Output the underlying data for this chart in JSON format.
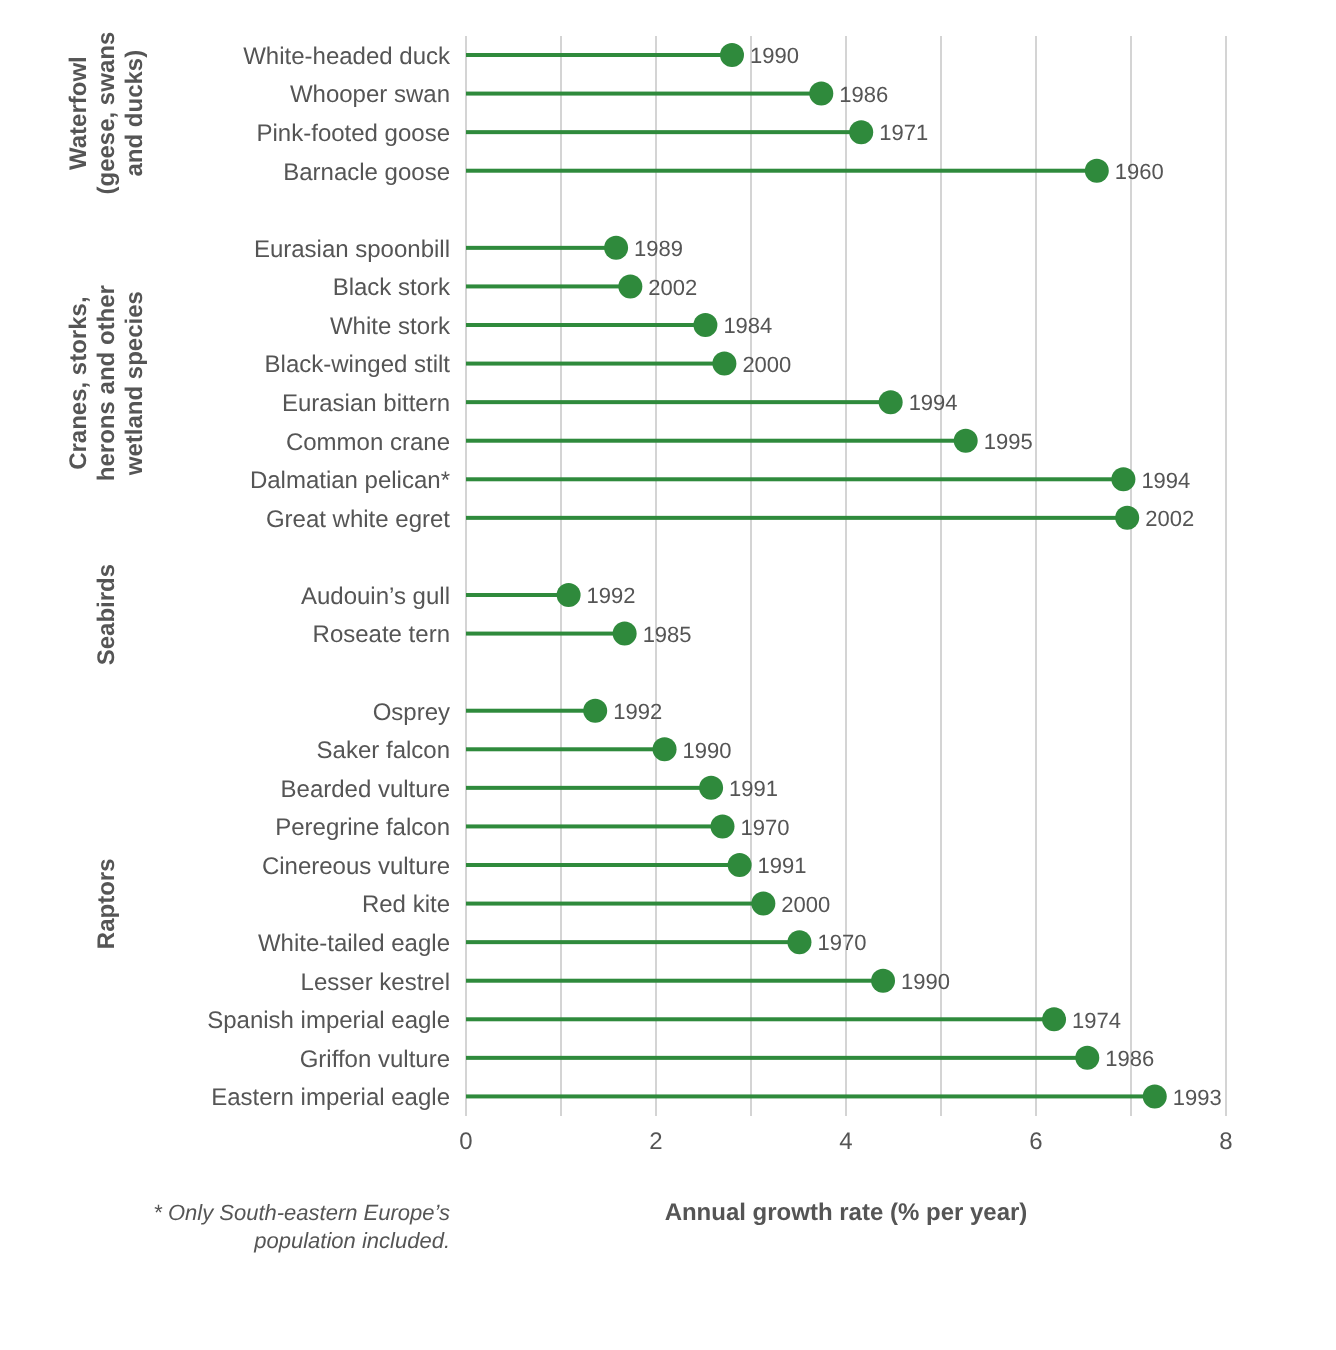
{
  "chart_data": {
    "type": "lollipop",
    "orientation": "horizontal",
    "xlabel": "Annual growth rate (% per year)",
    "categories": [
      "White-headed duck",
      "Whooper swan",
      "Pink-footed goose",
      "Barnacle goose",
      null,
      "Eurasian spoonbill",
      "Black stork",
      "White stork",
      "Black-winged stilt",
      "Eurasian bittern",
      "Common crane",
      "Dalmatian pelican*",
      "Great white egret",
      null,
      "Audouin’s gull",
      "Roseate tern",
      null,
      "Osprey",
      "Saker falcon",
      "Bearded vulture",
      "Peregrine falcon",
      "Cinereous vulture",
      "Red kite",
      "White-tailed eagle",
      "Lesser kestrel",
      "Spanish imperial eagle",
      "Griffon vulture",
      "Eastern imperial eagle"
    ],
    "values": [
      2.8,
      3.74,
      4.16,
      6.64,
      null,
      1.58,
      1.73,
      2.52,
      2.72,
      4.47,
      5.26,
      6.92,
      6.96,
      null,
      1.08,
      1.67,
      null,
      1.36,
      2.09,
      2.58,
      2.7,
      2.88,
      3.13,
      3.51,
      4.39,
      6.19,
      6.54,
      7.25
    ],
    "color": "#2f8a3c",
    "marker": "circle",
    "grid": "x",
    "xlim": [
      0,
      8
    ],
    "xticks": [
      0,
      {
        "value": 1,
        "label": null
      },
      2,
      {
        "value": 3,
        "label": null
      },
      4,
      {
        "value": 5,
        "label": null
      },
      6,
      {
        "value": 7,
        "label": null
      },
      8
    ],
    "annotations": [
      "Waterfowl (geese, swans and ducks)",
      "Cranes, storks, herons and other wetland species",
      "Seabirds",
      "Raptors",
      "* Only South-eastern Europe’s population included.",
      {
        "text": "1990",
        "x": 2.8,
        "y": "White-headed duck"
      },
      {
        "text": "1986",
        "x": 3.74,
        "y": "Whooper swan"
      },
      {
        "text": "1971",
        "x": 4.16,
        "y": "Pink-footed goose"
      },
      {
        "text": "1960",
        "x": 6.64,
        "y": "Barnacle goose"
      },
      {
        "text": "1989",
        "x": 1.58,
        "y": "Eurasian spoonbill"
      },
      {
        "text": "2002",
        "x": 1.73,
        "y": "Black stork"
      },
      {
        "text": "1984",
        "x": 2.52,
        "y": "White stork"
      },
      {
        "text": "2000",
        "x": 2.72,
        "y": "Black-winged stilt"
      },
      {
        "text": "1994",
        "x": 4.47,
        "y": "Eurasian bittern"
      },
      {
        "text": "1995",
        "x": 5.26,
        "y": "Common crane"
      },
      {
        "text": "1994",
        "x": 6.92,
        "y": "Dalmatian pelican*"
      },
      {
        "text": "2002",
        "x": 6.96,
        "y": "Great white egret"
      },
      {
        "text": "1992",
        "x": 1.08,
        "y": "Audouin’s gull"
      },
      {
        "text": "1985",
        "x": 1.67,
        "y": "Roseate tern"
      },
      {
        "text": "1992",
        "x": 1.36,
        "y": "Osprey"
      },
      {
        "text": "1990",
        "x": 2.09,
        "y": "Saker falcon"
      },
      {
        "text": "1991",
        "x": 2.58,
        "y": "Bearded vulture"
      },
      {
        "text": "1970",
        "x": 2.7,
        "y": "Peregrine falcon"
      },
      {
        "text": "1991",
        "x": 2.88,
        "y": "Cinereous vulture"
      },
      {
        "text": "2000",
        "x": 3.13,
        "y": "Red kite"
      },
      {
        "text": "1970",
        "x": 3.51,
        "y": "White-tailed eagle"
      },
      {
        "text": "1990",
        "x": 4.39,
        "y": "Lesser kestrel"
      },
      {
        "text": "1974",
        "x": 6.19,
        "y": "Spanish imperial eagle"
      },
      {
        "text": "1986",
        "x": 6.54,
        "y": "Griffon vulture"
      },
      {
        "text": "1993",
        "x": 7.25,
        "y": "Eastern imperial eagle"
      }
    ]
  }
}
